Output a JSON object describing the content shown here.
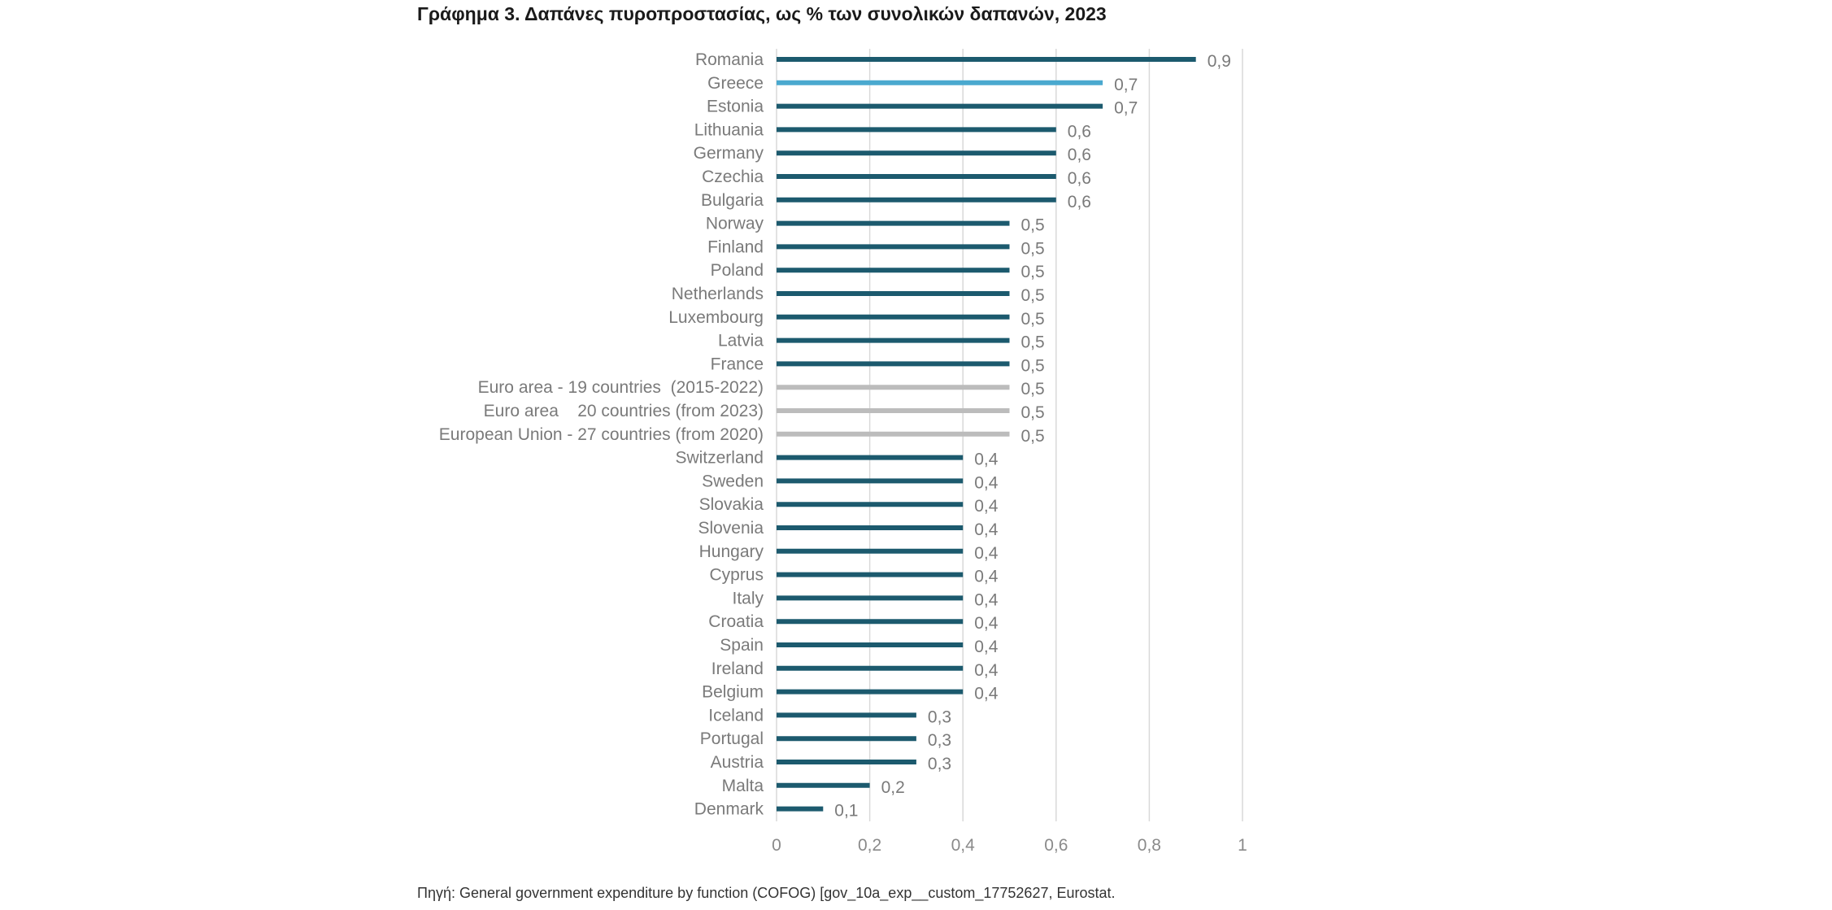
{
  "title": "Γράφημα 3. Δαπάνες πυροπροστασίας, ως % των συνολικών δαπανών, 2023",
  "source": "Πηγή: General government expenditure by function (COFOG) [gov_10a_exp__custom_17752627, Eurostat.",
  "colors": {
    "default": "#1c5a6e",
    "highlight": "#4aa9cf",
    "aggregate": "#bcbcbc",
    "grid": "#d9d9d9"
  },
  "chart_data": {
    "type": "bar",
    "orientation": "horizontal",
    "title": "Γράφημα 3. Δαπάνες πυροπροστασίας, ως % των συνολικών δαπανών, 2023",
    "xlim": [
      0,
      1
    ],
    "xticks": [
      0,
      0.2,
      0.4,
      0.6,
      0.8,
      1
    ],
    "xtick_labels": [
      "0",
      "0,2",
      "0,4",
      "0,6",
      "0,8",
      "1"
    ],
    "grid": true,
    "categories": [
      "Romania",
      "Greece",
      "Estonia",
      "Lithuania",
      "Germany",
      "Czechia",
      "Bulgaria",
      "Norway",
      "Finland",
      "Poland",
      "Netherlands",
      "Luxembourg",
      "Latvia",
      "France",
      "Euro area - 19 countries  (2015-2022)",
      "Euro area    20 countries (from 2023)",
      "European Union - 27 countries (from 2020)",
      "Switzerland",
      "Sweden",
      "Slovakia",
      "Slovenia",
      "Hungary",
      "Cyprus",
      "Italy",
      "Croatia",
      "Spain",
      "Ireland",
      "Belgium",
      "Iceland",
      "Portugal",
      "Austria",
      "Malta",
      "Denmark"
    ],
    "values": [
      0.9,
      0.7,
      0.7,
      0.6,
      0.6,
      0.6,
      0.6,
      0.5,
      0.5,
      0.5,
      0.5,
      0.5,
      0.5,
      0.5,
      0.5,
      0.5,
      0.5,
      0.4,
      0.4,
      0.4,
      0.4,
      0.4,
      0.4,
      0.4,
      0.4,
      0.4,
      0.4,
      0.4,
      0.3,
      0.3,
      0.3,
      0.2,
      0.1
    ],
    "value_labels": [
      "0,9",
      "0,7",
      "0,7",
      "0,6",
      "0,6",
      "0,6",
      "0,6",
      "0,5",
      "0,5",
      "0,5",
      "0,5",
      "0,5",
      "0,5",
      "0,5",
      "0,5",
      "0,5",
      "0,5",
      "0,4",
      "0,4",
      "0,4",
      "0,4",
      "0,4",
      "0,4",
      "0,4",
      "0,4",
      "0,4",
      "0,4",
      "0,4",
      "0,3",
      "0,3",
      "0,3",
      "0,2",
      "0,1"
    ],
    "bar_color_keys": [
      "default",
      "highlight",
      "default",
      "default",
      "default",
      "default",
      "default",
      "default",
      "default",
      "default",
      "default",
      "default",
      "default",
      "default",
      "aggregate",
      "aggregate",
      "aggregate",
      "default",
      "default",
      "default",
      "default",
      "default",
      "default",
      "default",
      "default",
      "default",
      "default",
      "default",
      "default",
      "default",
      "default",
      "default",
      "default"
    ]
  }
}
